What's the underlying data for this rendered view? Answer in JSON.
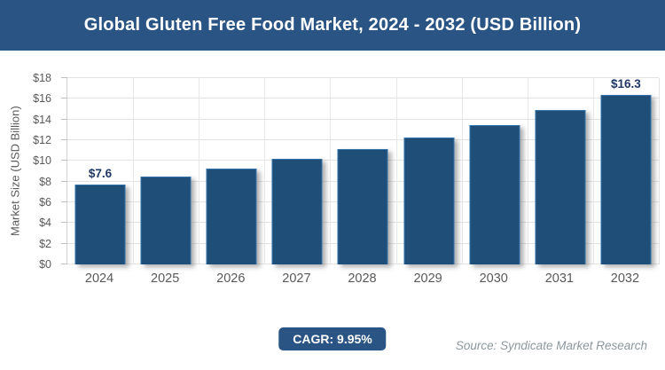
{
  "header": {
    "title": "Global Gluten Free Food Market, 2024 - 2032 (USD Billion)"
  },
  "chart_data": {
    "type": "bar",
    "title": "Global Gluten Free Food Market, 2024 - 2032 (USD Billion)",
    "categories": [
      "2024",
      "2025",
      "2026",
      "2027",
      "2028",
      "2029",
      "2030",
      "2031",
      "2032"
    ],
    "values": [
      7.6,
      8.4,
      9.2,
      10.1,
      11.1,
      12.2,
      13.4,
      14.8,
      16.3
    ],
    "bar_labels": [
      "$7.6",
      "",
      "",
      "",
      "",
      "",
      "",
      "",
      "$16.3"
    ],
    "xlabel": "",
    "ylabel": "Market Size (USD Billion)",
    "ylim": [
      0,
      18
    ],
    "ytick_labels": [
      "$0",
      "$2",
      "$4",
      "$6",
      "$8",
      "$10",
      "$12",
      "$14",
      "$16",
      "$18"
    ],
    "grid": true,
    "legend": false
  },
  "footer": {
    "cagr_label": "CAGR: 9.95%",
    "source": "Source: Syndicate Market Research"
  },
  "colors": {
    "header_bg": "#2A5484",
    "bar_fill": "#1F4E79",
    "bar_border": "#3273AC",
    "value_label_text": "#1F3864",
    "gridline": "#E3E3E3",
    "axis_text": "#595959",
    "source_text": "#8C979C",
    "badge_bg": "#2A5484",
    "title_text": "#FFFFFF"
  }
}
